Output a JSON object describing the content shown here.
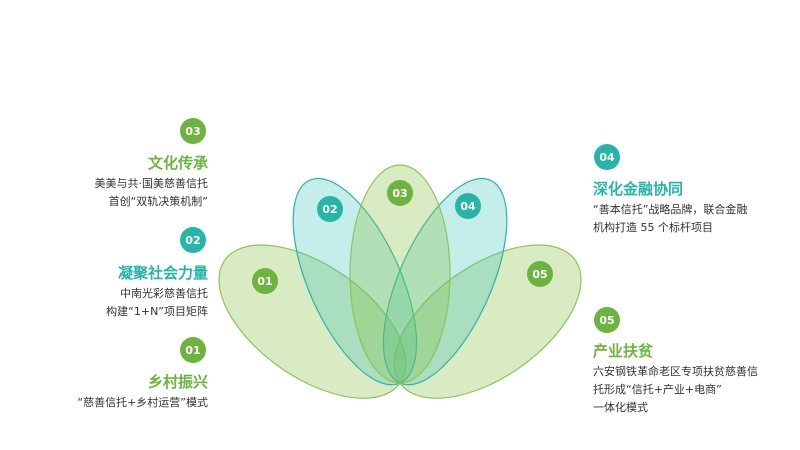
{
  "colors": {
    "green": "#6cb33f",
    "teal": "#26b5a7"
  },
  "items": [
    {
      "num": "01",
      "title": "乡村振兴",
      "lines": [
        "“慈善信托+乡村运营”模式"
      ],
      "color": "green"
    },
    {
      "num": "02",
      "title": "凝聚社会力量",
      "lines": [
        "中南光彩慈善信托",
        "构建“1+N”项目矩阵"
      ],
      "color": "teal"
    },
    {
      "num": "03",
      "title": "文化传承",
      "lines": [
        "美美与共·国美慈善信托",
        "首创“双轨决策机制”"
      ],
      "color": "green"
    },
    {
      "num": "04",
      "title": "深化金融协同",
      "lines": [
        "“善本信托”战略品牌，联合金融",
        "机构打造 55 个标杆项目"
      ],
      "color": "teal"
    },
    {
      "num": "05",
      "title": "产业扶贫",
      "lines": [
        "六安钢铁革命老区专项扶贫慈善信",
        "托形成“信托+产业+电商”",
        "一体化模式"
      ],
      "color": "green"
    }
  ]
}
